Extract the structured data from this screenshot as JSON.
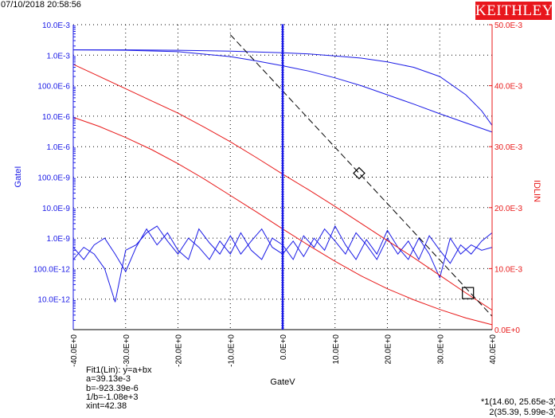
{
  "header": {
    "timestamp": "07/10/2018 20:58:56",
    "brand": "KEITHLEY"
  },
  "colors": {
    "left_axis": "#1a1ae6",
    "right_axis": "#e81818",
    "grid": "#000000",
    "brand": "#e8161c",
    "fit_line": "#000000"
  },
  "chart_data": {
    "type": "line",
    "xlabel": "GateV",
    "ylabel_left": "GateI",
    "ylabel_right": "IDLIN",
    "x_range": [
      -40,
      40
    ],
    "x_ticks": [
      -40,
      -30,
      -20,
      -10,
      0,
      10,
      20,
      30,
      40
    ],
    "x_tick_labels": [
      "-40.0E+0",
      "-30.0E+0",
      "-20.0E+0",
      "-10.0E+0",
      "0.0E+0",
      "10.0E+0",
      "20.0E+0",
      "30.0E+0",
      "40.0E+0"
    ],
    "y_left_scale": "log",
    "y_left_range": [
      1e-12,
      0.01
    ],
    "y_left_ticks": [
      0.01,
      0.001,
      0.0001,
      1e-05,
      1e-06,
      1e-07,
      1e-08,
      1e-09,
      1e-10,
      1e-11
    ],
    "y_left_tick_labels": [
      "10.0E-3",
      "1.0E-3",
      "100.0E-6",
      "10.0E-6",
      "1.0E-6",
      "100.0E-9",
      "10.0E-9",
      "1.0E-9",
      "100.0E-12",
      "10.0E-12"
    ],
    "y_right_scale": "linear",
    "y_right_range": [
      0,
      0.05
    ],
    "y_right_ticks": [
      0.05,
      0.04,
      0.03,
      0.02,
      0.01,
      0
    ],
    "y_right_tick_labels": [
      "50.0E-3",
      "40.0E-3",
      "30.0E-3",
      "20.0E-3",
      "10.0E-3",
      "0.0E+0"
    ],
    "grid": true,
    "series": [
      {
        "axis": "left",
        "color": "#1a1ae6",
        "x": [
          -40,
          -30,
          -20,
          -10,
          -5,
          0,
          5,
          10,
          15,
          20,
          25,
          30,
          35,
          38,
          40
        ],
        "y": [
          0.0015,
          0.0015,
          0.00145,
          0.00135,
          0.00128,
          0.0012,
          0.0011,
          0.00095,
          0.0008,
          0.0006,
          0.0004,
          0.0002,
          5e-05,
          1.5e-05,
          5e-06
        ]
      },
      {
        "axis": "left",
        "color": "#1a1ae6",
        "x": [
          -40,
          -30,
          -20,
          -10,
          -5,
          0,
          5,
          10,
          15,
          20,
          25,
          30,
          35,
          40
        ],
        "y": [
          0.0015,
          0.00145,
          0.0013,
          0.0009,
          0.00065,
          0.00045,
          0.0003,
          0.00018,
          0.0001,
          5e-05,
          2.5e-05,
          1.2e-05,
          6e-06,
          3e-06
        ]
      },
      {
        "axis": "left",
        "color": "#1a1ae6",
        "x": [
          -40,
          -38,
          -36,
          -34,
          -32,
          -30,
          -28,
          -26,
          -24,
          -22,
          -20,
          -18,
          -16,
          -14,
          -12,
          -10,
          -8,
          -6,
          -4,
          -2,
          0,
          2,
          4,
          6,
          8,
          10,
          12,
          14,
          16,
          18,
          20,
          22,
          24,
          26,
          28,
          30,
          32,
          34,
          36,
          38,
          40
        ],
        "y": [
          2e-10,
          5e-10,
          3e-10,
          1e-10,
          8e-12,
          4e-10,
          6e-10,
          1.5e-09,
          2.5e-09,
          8e-10,
          3e-10,
          1e-09,
          5e-10,
          2e-10,
          8e-10,
          3e-10,
          1.5e-09,
          4e-10,
          2e-10,
          1e-09,
          6e-10,
          2e-10,
          1.2e-09,
          5e-10,
          2e-09,
          8e-10,
          3e-10,
          1.5e-09,
          6e-10,
          2e-10,
          1e-09,
          3e-10,
          8e-10,
          2e-10,
          1.2e-09,
          4e-10,
          1.5e-10,
          6e-10,
          3e-10,
          8e-10,
          1.5e-09
        ]
      },
      {
        "axis": "left",
        "color": "#1a1ae6",
        "x": [
          -40,
          -38,
          -36,
          -34,
          -32,
          -30,
          -28,
          -26,
          -24,
          -22,
          -20,
          -18,
          -16,
          -14,
          -12,
          -10,
          -8,
          -6,
          -4,
          -2,
          0,
          2,
          4,
          6,
          8,
          10,
          12,
          14,
          16,
          18,
          20,
          22,
          24,
          26,
          28,
          30,
          32,
          34,
          36,
          38,
          40
        ],
        "y": [
          5e-10,
          2e-10,
          6e-10,
          1e-09,
          3e-10,
          8e-11,
          5e-10,
          2e-09,
          6e-10,
          1.5e-09,
          4e-10,
          2e-10,
          2e-09,
          7e-10,
          3e-10,
          1.2e-09,
          3e-10,
          8e-10,
          2e-09,
          5e-10,
          3e-10,
          8e-10,
          2.5e-10,
          1e-09,
          4e-10,
          2.5e-09,
          6e-10,
          2e-10,
          9e-10,
          3e-10,
          1.8e-09,
          5e-10,
          2e-10,
          1e-09,
          3e-10,
          5e-11,
          1e-09,
          3e-10,
          6e-10,
          4e-10,
          5e-10
        ]
      },
      {
        "axis": "right",
        "color": "#e81818",
        "x": [
          -40,
          -35,
          -30,
          -25,
          -20,
          -15,
          -10,
          -5,
          0,
          5,
          10,
          15,
          20,
          25,
          30,
          35,
          40
        ],
        "y": [
          0.0435,
          0.0415,
          0.0395,
          0.0375,
          0.0355,
          0.0332,
          0.0308,
          0.0282,
          0.0255,
          0.0229,
          0.0202,
          0.0174,
          0.0146,
          0.0118,
          0.0089,
          0.006,
          0.0032
        ]
      },
      {
        "axis": "right",
        "color": "#e81818",
        "x": [
          -40,
          -35,
          -30,
          -25,
          -20,
          -15,
          -10,
          -5,
          0,
          5,
          10,
          15,
          20,
          25,
          30,
          35,
          40
        ],
        "y": [
          0.0348,
          0.0333,
          0.0315,
          0.0295,
          0.0272,
          0.0247,
          0.022,
          0.0193,
          0.0165,
          0.0138,
          0.0112,
          0.0088,
          0.0067,
          0.0049,
          0.0033,
          0.0019,
          0.0008
        ]
      }
    ],
    "fit_line": {
      "axis": "right",
      "a": 0.03913,
      "b": -0.00092339,
      "x_range": [
        -10,
        40
      ]
    },
    "markers": [
      {
        "shape": "diamond",
        "axis": "right",
        "x": 14.6,
        "y": 0.02565
      },
      {
        "shape": "square",
        "axis": "right",
        "x": 35.39,
        "y": 0.00599
      }
    ],
    "fit_text": [
      "Fit1(Lin):  y=a+bx",
      "a=39.13e-3",
      "b=-923.39e-6",
      "1/b=-1.08e+3",
      "xint=42.38"
    ],
    "cursor_text": [
      "*1(14.60, 25.65e-3)",
      "2(35.39, 5.99e-3)"
    ]
  }
}
